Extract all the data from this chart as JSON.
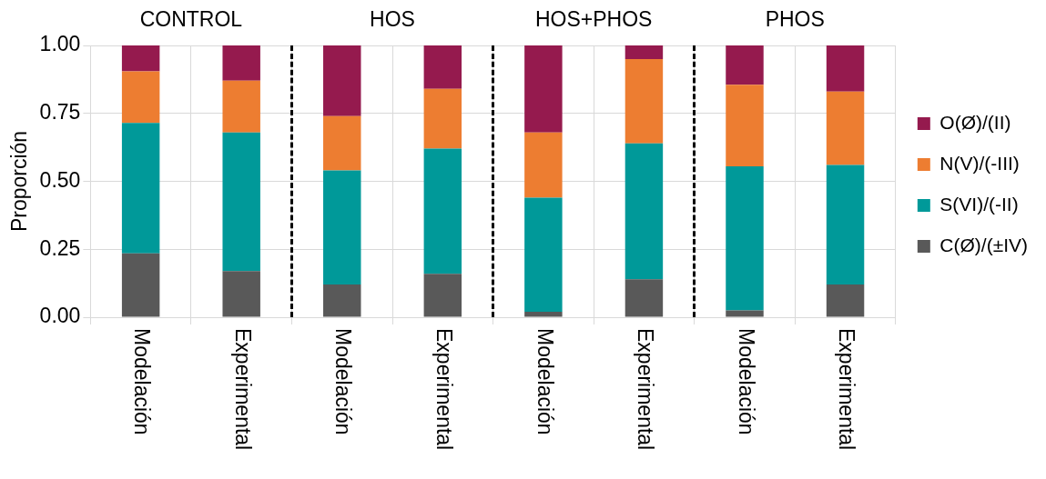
{
  "chart_data": {
    "type": "bar",
    "stacked": true,
    "ylabel": "Proporción",
    "categories": [
      "Modelación",
      "Experimental",
      "Modelación",
      "Experimental",
      "Modelación",
      "Experimental",
      "Modelación",
      "Experimental"
    ],
    "series": [
      {
        "name": "C(Ø)/(±IV)",
        "color": "#595959",
        "values": [
          0.235,
          0.17,
          0.12,
          0.16,
          0.02,
          0.14,
          0.025,
          0.12
        ]
      },
      {
        "name": "S(VI)/(-II)",
        "color": "#009999",
        "values": [
          0.48,
          0.51,
          0.42,
          0.46,
          0.42,
          0.5,
          0.53,
          0.44
        ]
      },
      {
        "name": "N(V)/(-III)",
        "color": "#ed7d31",
        "values": [
          0.19,
          0.19,
          0.2,
          0.22,
          0.24,
          0.31,
          0.3,
          0.27
        ]
      },
      {
        "name": "O(Ø)/(II)",
        "color": "#951a4e",
        "values": [
          0.095,
          0.13,
          0.26,
          0.16,
          0.32,
          0.05,
          0.145,
          0.17
        ]
      }
    ],
    "ylim": [
      0,
      1
    ],
    "yticks": [
      {
        "value": 0,
        "label": "0.00"
      },
      {
        "value": 0.25,
        "label": "0.25"
      },
      {
        "value": 0.5,
        "label": "0.50"
      },
      {
        "value": 0.75,
        "label": "0.75"
      },
      {
        "value": 1,
        "label": "1.00"
      }
    ],
    "grid": true,
    "legend": "right",
    "annotations": [
      "CONTROL",
      "HOS",
      "HOS+PHOS",
      "PHOS"
    ]
  }
}
